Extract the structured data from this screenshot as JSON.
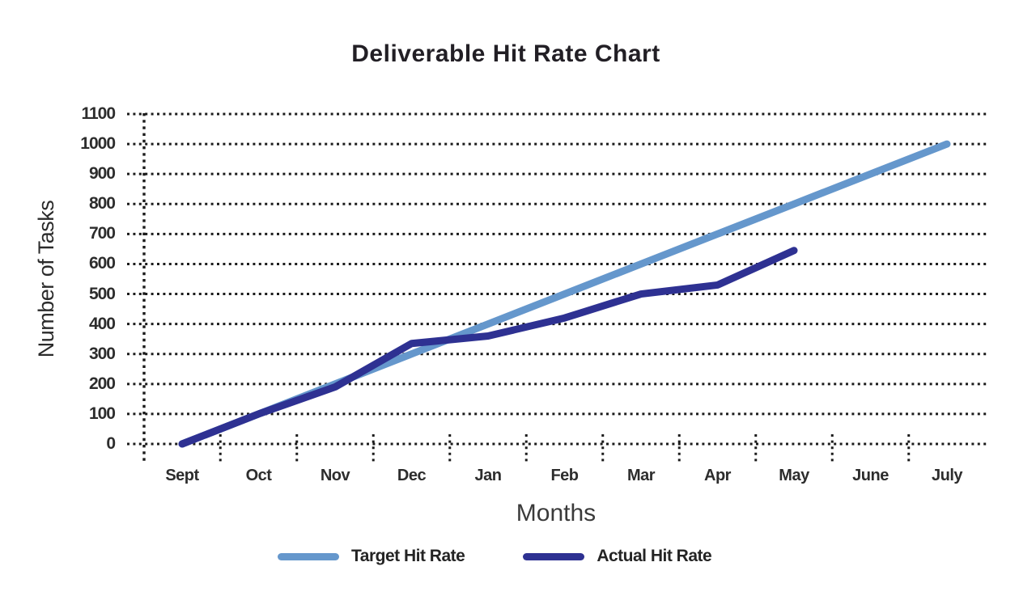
{
  "chart_data": {
    "type": "line",
    "title": "Deliverable Hit Rate Chart",
    "xlabel": "Months",
    "ylabel": "Number of Tasks",
    "categories": [
      "Sept",
      "Oct",
      "Nov",
      "Dec",
      "Jan",
      "Feb",
      "Mar",
      "Apr",
      "May",
      "June",
      "July"
    ],
    "y_ticks": [
      0,
      100,
      200,
      300,
      400,
      500,
      600,
      700,
      800,
      900,
      1000,
      1100
    ],
    "ylim": [
      0,
      1100
    ],
    "grid": "dotted-horizontal",
    "legend_position": "bottom",
    "series": [
      {
        "name": "Target Hit Rate",
        "color": "#6597cc",
        "values": [
          0,
          100,
          200,
          300,
          400,
          500,
          600,
          700,
          800,
          900,
          1000
        ]
      },
      {
        "name": "Actual Hit Rate",
        "color": "#2e3192",
        "values": [
          0,
          100,
          190,
          335,
          360,
          420,
          500,
          530,
          645
        ]
      }
    ]
  },
  "style": {
    "grid_dot_color": "#1b1b1b",
    "background": "#ffffff"
  }
}
